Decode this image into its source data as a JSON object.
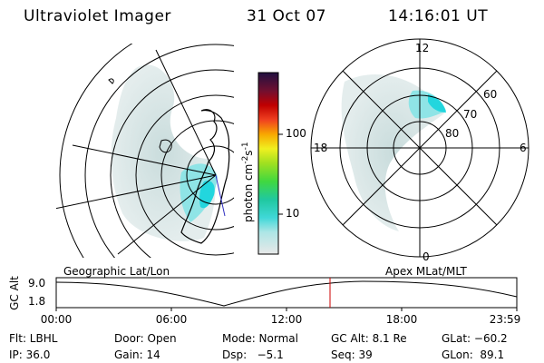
{
  "header": {
    "instrument": "Ultraviolet Imager",
    "date": "31 Oct 07",
    "time": "14:16:01 UT"
  },
  "colorbar": {
    "unit_label": "photon cm",
    "unit_exp_a": "-2",
    "unit_mid": "s",
    "unit_exp_b": "-1",
    "ticks": [
      "100",
      "10"
    ]
  },
  "polar_plot": {
    "mlt_labels": {
      "top": "12",
      "left": "18",
      "right": "6",
      "bottom": "0"
    },
    "mlat_labels": [
      "60",
      "70",
      "80"
    ]
  },
  "panels": {
    "left_label": "Geographic Lat/Lon",
    "right_label": "Apex MLat/MLT"
  },
  "altitude_strip": {
    "axis_label": "GC Alt",
    "y_ticks": [
      "9.0",
      "1.8"
    ],
    "x_ticks": [
      "00:00",
      "06:00",
      "12:00",
      "18:00",
      "23:59"
    ],
    "current_time_hours": 14.27
  },
  "info": {
    "row1": {
      "filter": "Flt: LBHL",
      "door": "Door: Open",
      "mode": "Mode: Normal",
      "gc_alt": "GC Alt: 8.1 Re",
      "glat": "GLat: −60.2"
    },
    "row2": {
      "ip": "IP: 36.0",
      "gain": "Gain: 14",
      "dsp": "Dsp:   −5.1",
      "seq": "Seq: 39",
      "glon": "GLon:  89.1"
    }
  },
  "colors": {
    "emission_low": "#d6e3e3",
    "emission_mid": "#70dde6",
    "emission_high": "#22d6de",
    "current_time_marker": "#cc0000",
    "coastline": "#000000"
  }
}
